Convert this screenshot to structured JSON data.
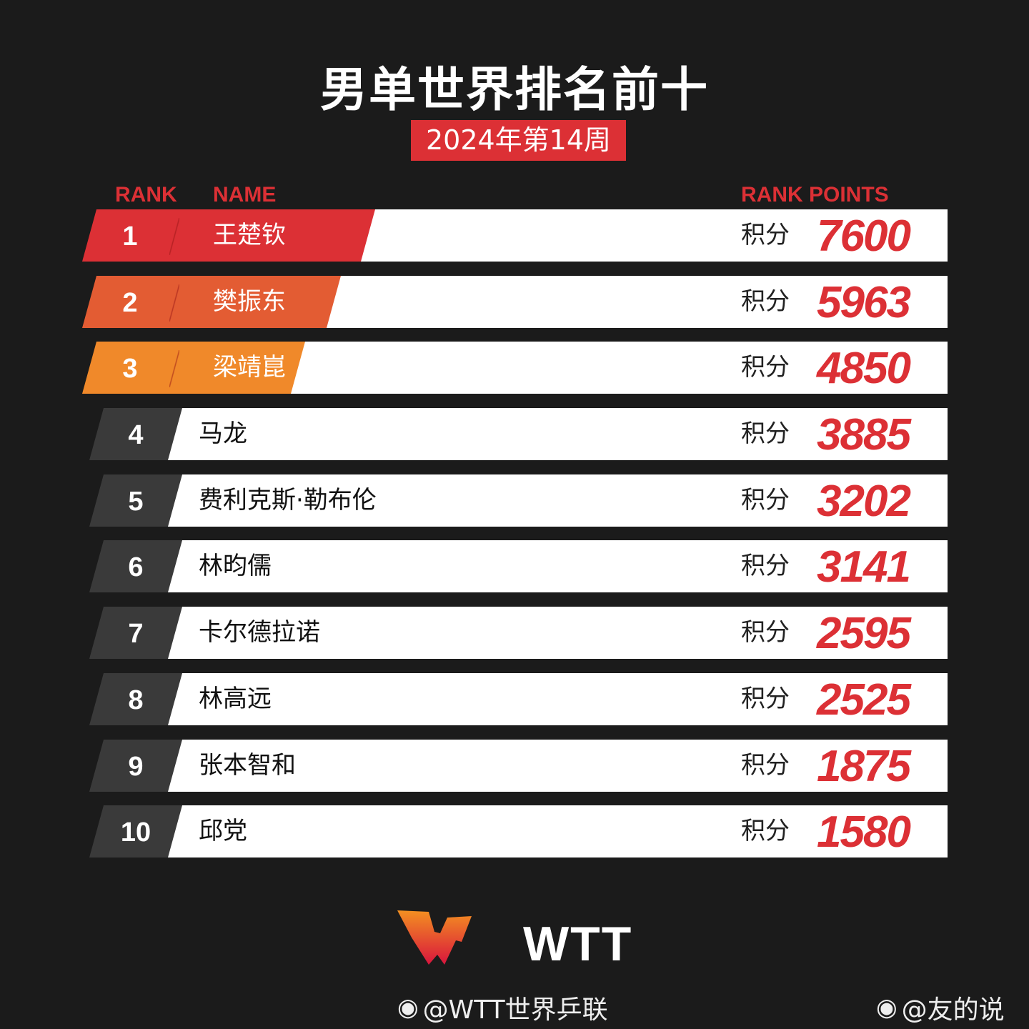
{
  "title": "男单世界排名前十",
  "subtitle": "2024年第14周",
  "headers": {
    "rank": "RANK",
    "name": "NAME",
    "points": "RANK POINTS"
  },
  "points_label": "积分",
  "colors": {
    "accent": "#dc3035",
    "rank1": "#dc3035",
    "rank2": "#e35c33",
    "rank3": "#f0892a",
    "dark": "#3a3a3a"
  },
  "rows": [
    {
      "rank": "1",
      "name": "王楚钦",
      "points": "7600"
    },
    {
      "rank": "2",
      "name": "樊振东",
      "points": "5963"
    },
    {
      "rank": "3",
      "name": "梁靖崑",
      "points": "4850"
    },
    {
      "rank": "4",
      "name": "马龙",
      "points": "3885"
    },
    {
      "rank": "5",
      "name": "费利克斯·勒布伦",
      "points": "3202"
    },
    {
      "rank": "6",
      "name": "林昀儒",
      "points": "3141"
    },
    {
      "rank": "7",
      "name": "卡尔德拉诺",
      "points": "2595"
    },
    {
      "rank": "8",
      "name": "林高远",
      "points": "2525"
    },
    {
      "rank": "9",
      "name": "张本智和",
      "points": "1875"
    },
    {
      "rank": "10",
      "name": "邱党",
      "points": "1580"
    }
  ],
  "logo_text": "WTT",
  "watermarks": [
    "@WTT世界乒联",
    "@友的说"
  ],
  "icons": {
    "watermark": "weibo-icon"
  }
}
